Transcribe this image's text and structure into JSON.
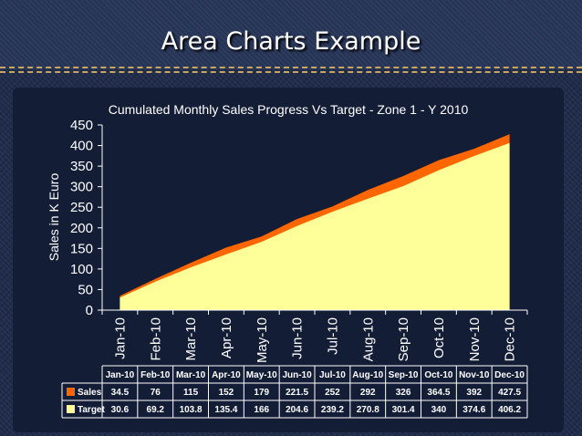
{
  "slide": {
    "title": "Area Charts Example"
  },
  "chart_data": {
    "type": "area",
    "title": "Cumulated Monthly Sales Progress Vs Target - Zone 1 -  Y 2010",
    "xlabel": "",
    "ylabel": "Sales in K Euro",
    "ylim": [
      0,
      450
    ],
    "yticks": [
      0,
      50,
      100,
      150,
      200,
      250,
      300,
      350,
      400,
      450
    ],
    "grid": false,
    "categories": [
      "Jan-10",
      "Feb-10",
      "Mar-10",
      "Apr-10",
      "May-10",
      "Jun-10",
      "Jul-10",
      "Aug-10",
      "Sep-10",
      "Oct-10",
      "Nov-10",
      "Dec-10"
    ],
    "series": [
      {
        "name": "Sales",
        "color": "#ff6600",
        "values": [
          34.5,
          76,
          115,
          152,
          179,
          221.5,
          252,
          292,
          326,
          364.5,
          392,
          427.5
        ]
      },
      {
        "name": "Target",
        "color": "#ffff99",
        "values": [
          30.6,
          69.2,
          103.8,
          135.4,
          166,
          204.6,
          239.2,
          270.8,
          301.4,
          340,
          374.6,
          406.2
        ]
      }
    ],
    "data_table": true
  }
}
